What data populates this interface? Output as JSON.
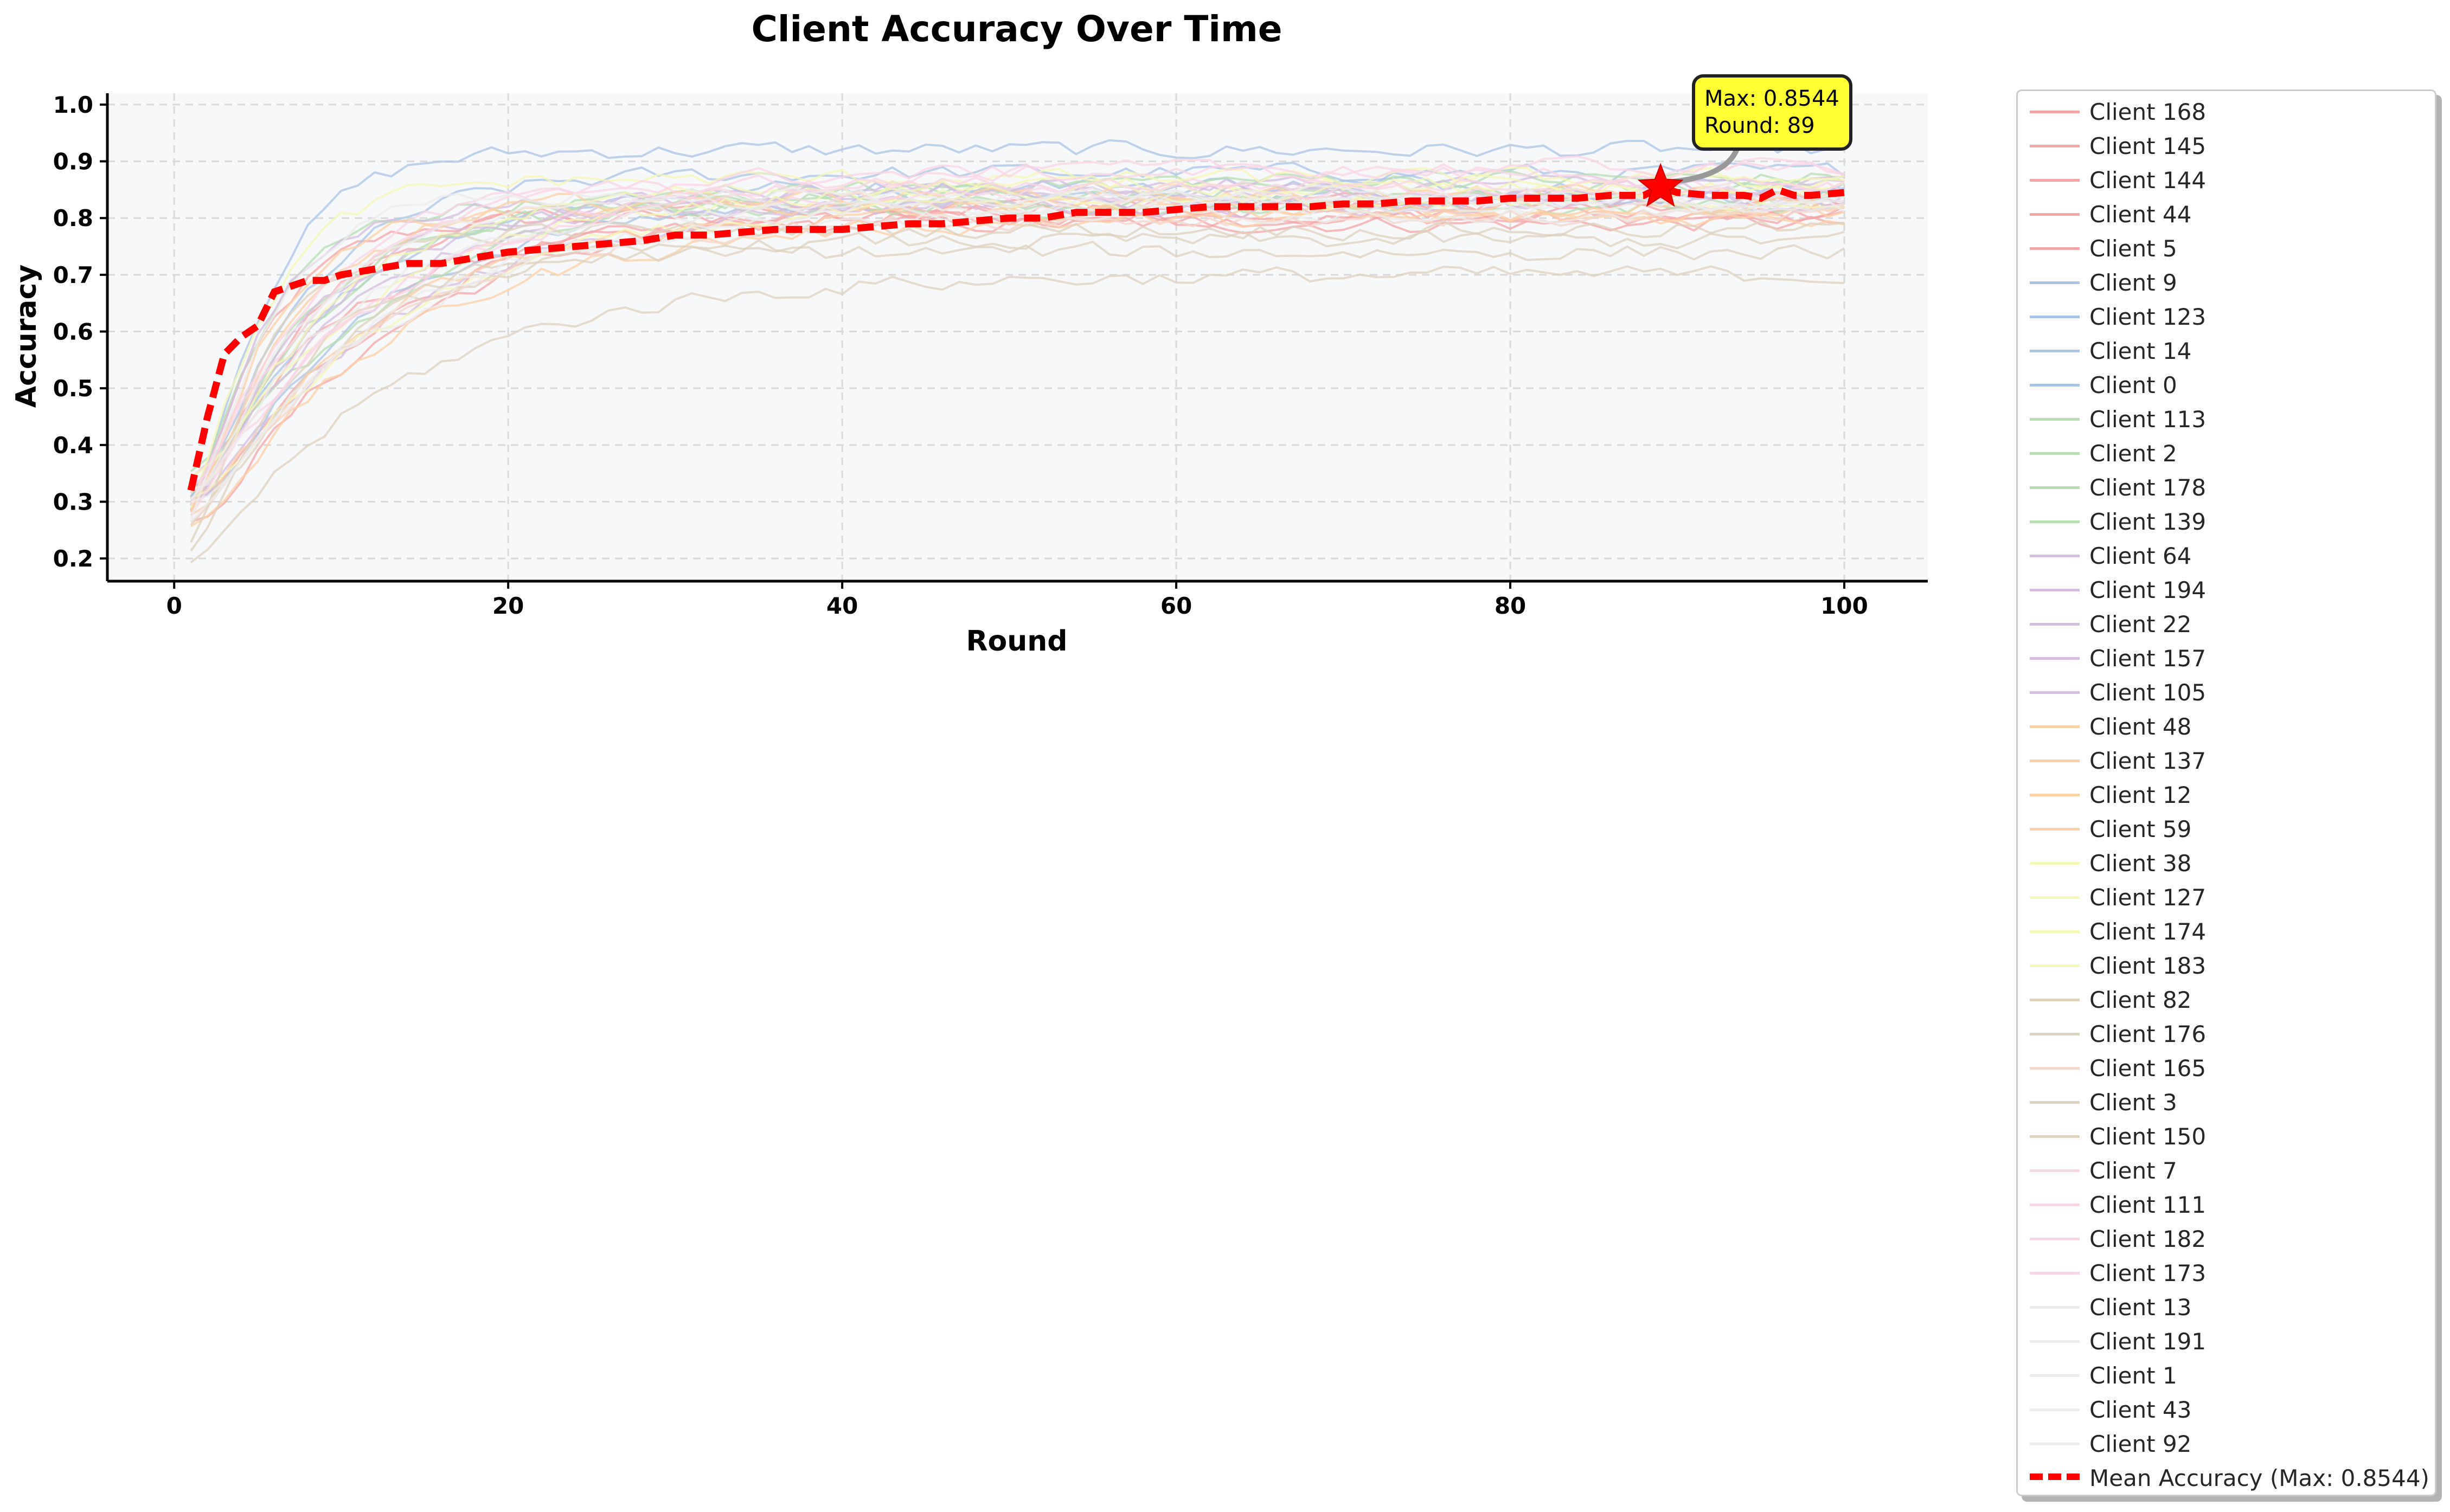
{
  "chart_data": {
    "type": "line",
    "title": "Client Accuracy Over Time",
    "xlabel": "Round",
    "ylabel": "Accuracy",
    "xlim": [
      -4,
      105
    ],
    "ylim": [
      0.16,
      1.02
    ],
    "xticks": [
      0,
      20,
      40,
      60,
      80,
      100
    ],
    "yticks": [
      0.2,
      0.3,
      0.4,
      0.5,
      0.6,
      0.7,
      0.8,
      0.9,
      1.0
    ],
    "grid": true,
    "legend_position": "outside-right",
    "client_series": [
      {
        "name": "Client 168",
        "color": "#f4a6a6",
        "start": 0.3,
        "plateau": 0.8
      },
      {
        "name": "Client 145",
        "color": "#f4a6a6",
        "start": 0.28,
        "plateau": 0.82
      },
      {
        "name": "Client 144",
        "color": "#f4a6a6",
        "start": 0.32,
        "plateau": 0.79
      },
      {
        "name": "Client 44",
        "color": "#f4a6a6",
        "start": 0.27,
        "plateau": 0.81
      },
      {
        "name": "Client 5",
        "color": "#f4a6a6",
        "start": 0.25,
        "plateau": 0.83
      },
      {
        "name": "Client 9",
        "color": "#a9c4e4",
        "start": 0.3,
        "plateau": 0.92
      },
      {
        "name": "Client 123",
        "color": "#a9c4e4",
        "start": 0.29,
        "plateau": 0.88
      },
      {
        "name": "Client 14",
        "color": "#a9c4e4",
        "start": 0.31,
        "plateau": 0.86
      },
      {
        "name": "Client 0",
        "color": "#a9c4e4",
        "start": 0.28,
        "plateau": 0.84
      },
      {
        "name": "Client 113",
        "color": "#b5ddb0",
        "start": 0.33,
        "plateau": 0.87
      },
      {
        "name": "Client 2",
        "color": "#b5ddb0",
        "start": 0.3,
        "plateau": 0.83
      },
      {
        "name": "Client 178",
        "color": "#b5ddb0",
        "start": 0.29,
        "plateau": 0.82
      },
      {
        "name": "Client 139",
        "color": "#b5ddb0",
        "start": 0.31,
        "plateau": 0.85
      },
      {
        "name": "Client 64",
        "color": "#d6bde0",
        "start": 0.32,
        "plateau": 0.86
      },
      {
        "name": "Client 194",
        "color": "#d6bde0",
        "start": 0.29,
        "plateau": 0.84
      },
      {
        "name": "Client 22",
        "color": "#d6bde0",
        "start": 0.3,
        "plateau": 0.83
      },
      {
        "name": "Client 157",
        "color": "#d6bde0",
        "start": 0.28,
        "plateau": 0.82
      },
      {
        "name": "Client 105",
        "color": "#d6bde0",
        "start": 0.31,
        "plateau": 0.85
      },
      {
        "name": "Client 48",
        "color": "#fcd0a5",
        "start": 0.27,
        "plateau": 0.81
      },
      {
        "name": "Client 137",
        "color": "#fcd0a5",
        "start": 0.26,
        "plateau": 0.8
      },
      {
        "name": "Client 12",
        "color": "#fcd0a5",
        "start": 0.28,
        "plateau": 0.82
      },
      {
        "name": "Client 59",
        "color": "#fcd0a5",
        "start": 0.29,
        "plateau": 0.84
      },
      {
        "name": "Client 38",
        "color": "#f4f7b5",
        "start": 0.3,
        "plateau": 0.86
      },
      {
        "name": "Client 127",
        "color": "#f4f7b5",
        "start": 0.32,
        "plateau": 0.85
      },
      {
        "name": "Client 174",
        "color": "#f4f7b5",
        "start": 0.29,
        "plateau": 0.83
      },
      {
        "name": "Client 183",
        "color": "#f4f7b5",
        "start": 0.31,
        "plateau": 0.87
      },
      {
        "name": "Client 82",
        "color": "#ddd2bd",
        "start": 0.22,
        "plateau": 0.74
      },
      {
        "name": "Client 176",
        "color": "#ddd2bd",
        "start": 0.24,
        "plateau": 0.76
      },
      {
        "name": "Client 165",
        "color": "#f3d7cc",
        "start": 0.26,
        "plateau": 0.8
      },
      {
        "name": "Client 3",
        "color": "#ddd2bd",
        "start": 0.2,
        "plateau": 0.7
      },
      {
        "name": "Client 150",
        "color": "#ddd2bd",
        "start": 0.23,
        "plateau": 0.78
      },
      {
        "name": "Client 7",
        "color": "#f9d4e4",
        "start": 0.31,
        "plateau": 0.86
      },
      {
        "name": "Client 111",
        "color": "#f9d4e4",
        "start": 0.33,
        "plateau": 0.88
      },
      {
        "name": "Client 182",
        "color": "#f9d4e4",
        "start": 0.3,
        "plateau": 0.85
      },
      {
        "name": "Client 173",
        "color": "#f9d4e4",
        "start": 0.32,
        "plateau": 0.89
      },
      {
        "name": "Client 13",
        "color": "#ececec",
        "start": 0.29,
        "plateau": 0.84
      },
      {
        "name": "Client 191",
        "color": "#ececec",
        "start": 0.28,
        "plateau": 0.83
      },
      {
        "name": "Client 1",
        "color": "#ececec",
        "start": 0.3,
        "plateau": 0.82
      },
      {
        "name": "Client 43",
        "color": "#ececec",
        "start": 0.27,
        "plateau": 0.81
      },
      {
        "name": "Client 92",
        "color": "#ececec",
        "start": 0.29,
        "plateau": 0.83
      }
    ],
    "mean_series": {
      "name": "Mean Accuracy (Max: 0.8544)",
      "color": "#ff0000",
      "x": [
        1,
        2,
        3,
        4,
        5,
        6,
        7,
        8,
        9,
        10,
        12,
        14,
        16,
        18,
        20,
        22,
        24,
        26,
        28,
        30,
        32,
        34,
        36,
        38,
        40,
        42,
        44,
        46,
        48,
        50,
        52,
        54,
        56,
        58,
        60,
        62,
        64,
        66,
        68,
        70,
        72,
        74,
        76,
        78,
        80,
        82,
        84,
        86,
        88,
        89,
        90,
        92,
        94,
        95,
        96,
        97,
        98,
        100
      ],
      "y": [
        0.32,
        0.45,
        0.56,
        0.59,
        0.61,
        0.67,
        0.68,
        0.69,
        0.69,
        0.7,
        0.71,
        0.72,
        0.72,
        0.73,
        0.74,
        0.745,
        0.75,
        0.755,
        0.76,
        0.77,
        0.77,
        0.775,
        0.78,
        0.78,
        0.78,
        0.785,
        0.79,
        0.79,
        0.795,
        0.8,
        0.8,
        0.81,
        0.81,
        0.81,
        0.815,
        0.82,
        0.82,
        0.82,
        0.82,
        0.825,
        0.825,
        0.83,
        0.83,
        0.83,
        0.835,
        0.835,
        0.835,
        0.84,
        0.84,
        0.8544,
        0.845,
        0.84,
        0.84,
        0.835,
        0.85,
        0.84,
        0.84,
        0.845
      ]
    },
    "annotation": {
      "text_line1": "Max: 0.8544",
      "text_line2": "Round: 89",
      "x": 89,
      "y": 0.8544,
      "box_color": "#ffff33"
    }
  }
}
